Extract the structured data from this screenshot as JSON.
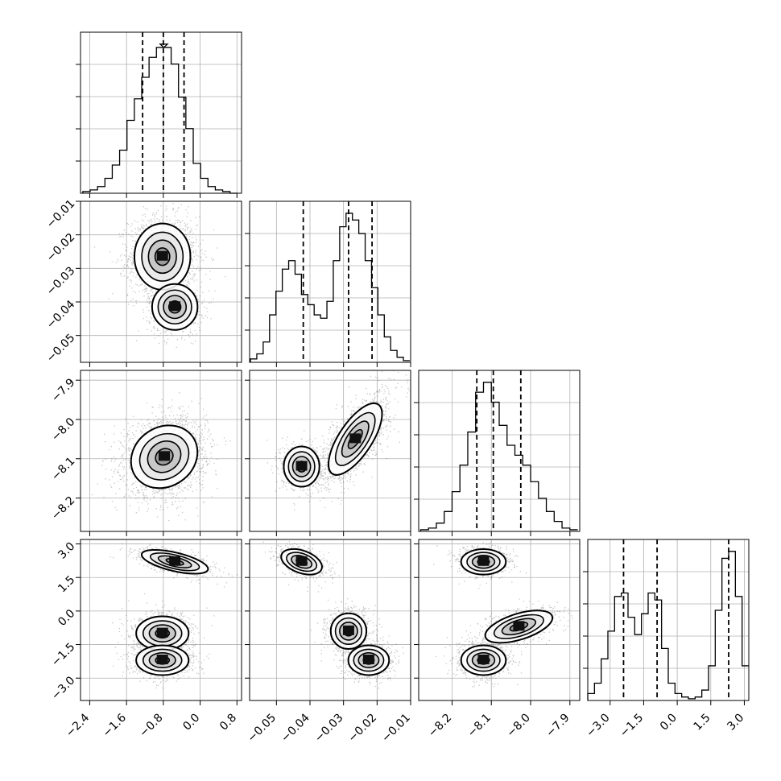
{
  "chart_data": {
    "type": "corner",
    "parameters": [
      {
        "id": "p0",
        "range": [
          -2.6,
          0.9
        ],
        "ticks": [
          -2.4,
          -1.6,
          -0.8,
          0.0,
          0.8
        ],
        "tick_labels": [
          "−2.4",
          "−1.6",
          "−0.8",
          "0.0",
          "0.8"
        ],
        "quantiles": [
          -1.25,
          -0.8,
          -0.35
        ]
      },
      {
        "id": "p1",
        "range": [
          -0.058,
          -0.01
        ],
        "ticks": [
          -0.05,
          -0.04,
          -0.03,
          -0.02,
          -0.01
        ],
        "tick_labels": [
          "−0.05",
          "−0.04",
          "−0.03",
          "−0.02",
          "−0.01"
        ],
        "quantiles": [
          -0.042,
          -0.0285,
          -0.0215
        ]
      },
      {
        "id": "p2",
        "range": [
          -8.285,
          -7.875
        ],
        "ticks": [
          -8.2,
          -8.1,
          -8.0,
          -7.9
        ],
        "tick_labels": [
          "−8.2",
          "−8.1",
          "−8.0",
          "−7.9"
        ],
        "quantiles": [
          -8.137,
          -8.095,
          -8.025
        ]
      },
      {
        "id": "p3",
        "range": [
          -4.0,
          3.2
        ],
        "ticks": [
          -3.0,
          -1.5,
          0.0,
          1.5,
          3.0
        ],
        "tick_labels": [
          "−3.0",
          "−1.5",
          "0.0",
          "1.5",
          "3.0"
        ],
        "quantiles": [
          -2.4,
          -0.9,
          2.3
        ]
      }
    ],
    "histograms": [
      {
        "param": "p0",
        "bin_centers": [
          -2.47,
          -2.31,
          -2.15,
          -1.99,
          -1.83,
          -1.67,
          -1.51,
          -1.35,
          -1.19,
          -1.03,
          -0.87,
          -0.79,
          -0.71,
          -0.55,
          -0.39,
          -0.23,
          -0.07,
          0.09,
          0.25,
          0.41,
          0.57,
          0.73
        ],
        "counts": [
          1,
          2,
          4,
          9,
          17,
          26,
          44,
          57,
          70,
          82,
          88,
          90,
          88,
          78,
          58,
          39,
          18,
          9,
          4,
          2,
          1,
          0
        ]
      },
      {
        "param": "p1",
        "bin_centers": [
          -0.0568,
          -0.0549,
          -0.053,
          -0.0511,
          -0.0492,
          -0.0473,
          -0.0454,
          -0.0435,
          -0.0416,
          -0.0397,
          -0.0378,
          -0.0359,
          -0.034,
          -0.0321,
          -0.0302,
          -0.0283,
          -0.0264,
          -0.0245,
          -0.0226,
          -0.0207,
          -0.0188,
          -0.0169,
          -0.015,
          -0.0131,
          -0.0112
        ],
        "counts": [
          2,
          5,
          12,
          28,
          42,
          55,
          60,
          52,
          40,
          34,
          28,
          26,
          36,
          60,
          80,
          88,
          84,
          76,
          60,
          44,
          28,
          15,
          7,
          3,
          1
        ]
      },
      {
        "param": "p2",
        "bin_centers": [
          -8.27,
          -8.25,
          -8.23,
          -8.21,
          -8.19,
          -8.17,
          -8.15,
          -8.13,
          -8.11,
          -8.09,
          -8.07,
          -8.05,
          -8.03,
          -8.01,
          -7.99,
          -7.97,
          -7.95,
          -7.93,
          -7.91,
          -7.89
        ],
        "counts": [
          1,
          2,
          5,
          12,
          24,
          40,
          60,
          84,
          90,
          78,
          64,
          52,
          46,
          40,
          30,
          20,
          12,
          6,
          2,
          1
        ]
      },
      {
        "param": "p3",
        "bin_centers": [
          -3.85,
          -3.55,
          -3.25,
          -2.95,
          -2.65,
          -2.35,
          -2.05,
          -1.75,
          -1.45,
          -1.15,
          -0.85,
          -0.55,
          -0.25,
          0.05,
          0.35,
          0.65,
          0.95,
          1.25,
          1.55,
          1.85,
          2.15,
          2.45,
          2.75,
          3.05
        ],
        "counts": [
          4,
          10,
          24,
          40,
          60,
          62,
          48,
          38,
          50,
          62,
          58,
          30,
          10,
          4,
          2,
          1,
          2,
          6,
          20,
          52,
          82,
          86,
          60,
          20
        ]
      }
    ],
    "pairs": [
      {
        "x": "p0",
        "y": "p1",
        "modes": [
          {
            "cx": -0.82,
            "cy": -0.0265,
            "sx": 0.32,
            "sy": 0.0052,
            "rho": 0.0,
            "w": 0.72
          },
          {
            "cx": -0.55,
            "cy": -0.0415,
            "sx": 0.26,
            "sy": 0.0036,
            "rho": 0.0,
            "w": 0.28
          }
        ]
      },
      {
        "x": "p0",
        "y": "p2",
        "modes": [
          {
            "cx": -0.78,
            "cy": -8.095,
            "sx": 0.38,
            "sy": 0.042,
            "rho": 0.15,
            "w": 1.0
          }
        ]
      },
      {
        "x": "p1",
        "y": "p2",
        "modes": [
          {
            "cx": -0.0425,
            "cy": -8.12,
            "sx": 0.0028,
            "sy": 0.027,
            "rho": 0.0,
            "w": 0.28
          },
          {
            "cx": -0.0265,
            "cy": -8.05,
            "sx": 0.0042,
            "sy": 0.048,
            "rho": 0.7,
            "w": 0.72
          }
        ]
      },
      {
        "x": "p0",
        "y": "p3",
        "modes": [
          {
            "cx": -0.55,
            "cy": 2.2,
            "sx": 0.38,
            "sy": 0.28,
            "rho": -0.6,
            "w": 0.3
          },
          {
            "cx": -0.82,
            "cy": -1.0,
            "sx": 0.3,
            "sy": 0.4,
            "rho": 0.0,
            "w": 0.35
          },
          {
            "cx": -0.82,
            "cy": -2.2,
            "sx": 0.3,
            "sy": 0.35,
            "rho": 0.0,
            "w": 0.35
          }
        ]
      },
      {
        "x": "p1",
        "y": "p3",
        "modes": [
          {
            "cx": -0.0425,
            "cy": 2.2,
            "sx": 0.0032,
            "sy": 0.3,
            "rho": -0.4,
            "w": 0.3
          },
          {
            "cx": -0.0285,
            "cy": -0.9,
            "sx": 0.0028,
            "sy": 0.42,
            "rho": 0.0,
            "w": 0.35
          },
          {
            "cx": -0.0225,
            "cy": -2.2,
            "sx": 0.0032,
            "sy": 0.35,
            "rho": 0.0,
            "w": 0.35
          }
        ]
      },
      {
        "x": "p2",
        "y": "p3",
        "modes": [
          {
            "cx": -8.12,
            "cy": 2.2,
            "sx": 0.03,
            "sy": 0.3,
            "rho": 0.0,
            "w": 0.3
          },
          {
            "cx": -8.03,
            "cy": -0.7,
            "sx": 0.045,
            "sy": 0.38,
            "rho": 0.55,
            "w": 0.35
          },
          {
            "cx": -8.12,
            "cy": -2.2,
            "sx": 0.03,
            "sy": 0.35,
            "rho": 0.0,
            "w": 0.35
          }
        ]
      }
    ],
    "grid": true,
    "quantile_lines": "dashed"
  }
}
